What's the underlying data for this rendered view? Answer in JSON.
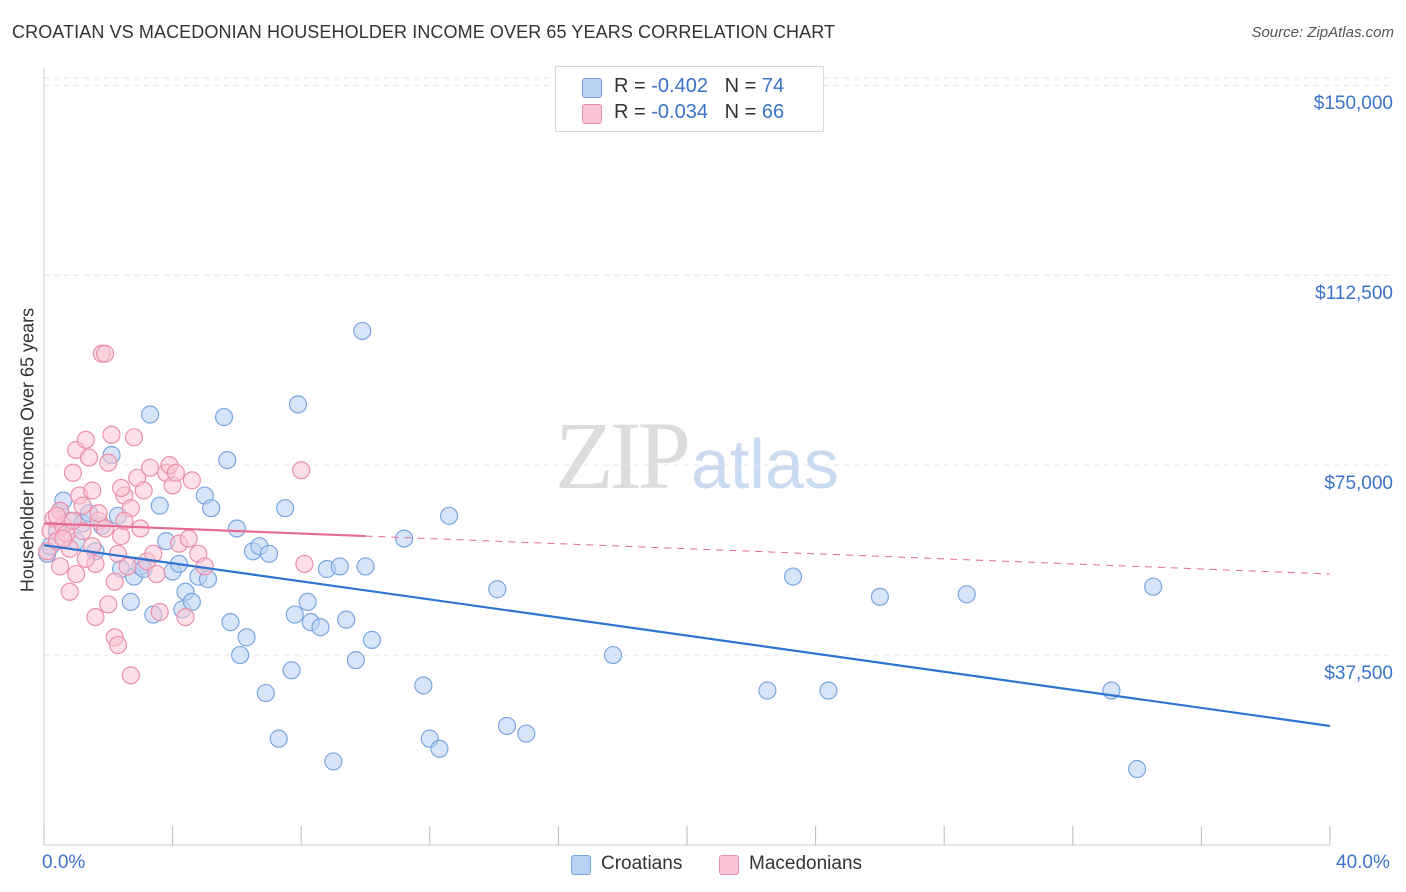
{
  "title": "CROATIAN VS MACEDONIAN HOUSEHOLDER INCOME OVER 65 YEARS CORRELATION CHART",
  "source": "Source: ZipAtlas.com",
  "watermark": {
    "zip": "ZIP",
    "atlas": "atlas"
  },
  "legend_top": [
    {
      "r_label": "R = ",
      "r_value": "-0.402",
      "n_label": "N = ",
      "n_value": "74"
    },
    {
      "r_label": "R = ",
      "r_value": "-0.034",
      "n_label": "N = ",
      "n_value": "66"
    }
  ],
  "colors": {
    "croatians_fill": "#b8d0f2",
    "croatians_stroke": "#7aa6e0",
    "croatians_line": "#2f74d0",
    "macedonians_fill": "#f9c4d4",
    "macedonians_stroke": "#ec8fad",
    "macedonians_line": "#e46a93",
    "axis_text": "#3a73c9",
    "grid": "#e6e6e6"
  },
  "chart_data": {
    "type": "scatter",
    "title": "CROATIAN VS MACEDONIAN HOUSEHOLDER INCOME OVER 65 YEARS CORRELATION CHART",
    "xlabel": "",
    "ylabel": "Householder Income Over 65 years",
    "xlim": [
      0,
      40
    ],
    "ylim": [
      0,
      155000
    ],
    "x_tick_labels": [
      "0.0%",
      "40.0%"
    ],
    "y_ticks": [
      37500,
      75000,
      112500,
      150000
    ],
    "y_tick_labels": [
      "$37,500",
      "$75,000",
      "$112,500",
      "$150,000"
    ],
    "grid": true,
    "legend_position": "bottom-center",
    "series": [
      {
        "name": "Croatians",
        "r": -0.402,
        "n": 74,
        "trend": {
          "x": [
            0,
            40
          ],
          "y": [
            59200,
            23500
          ],
          "dashed_from": null
        },
        "points": [
          [
            0.1,
            57500
          ],
          [
            0.2,
            59000
          ],
          [
            0.4,
            62000
          ],
          [
            0.5,
            66000
          ],
          [
            0.6,
            68000
          ],
          [
            0.8,
            64000
          ],
          [
            1.0,
            60000
          ],
          [
            1.2,
            63500
          ],
          [
            1.4,
            65500
          ],
          [
            1.6,
            58000
          ],
          [
            1.8,
            63000
          ],
          [
            2.1,
            77000
          ],
          [
            2.3,
            65000
          ],
          [
            2.4,
            54500
          ],
          [
            2.7,
            48000
          ],
          [
            2.8,
            53000
          ],
          [
            3.0,
            55000
          ],
          [
            3.1,
            54500
          ],
          [
            3.3,
            85000
          ],
          [
            3.4,
            45500
          ],
          [
            3.6,
            67000
          ],
          [
            3.8,
            60000
          ],
          [
            4.0,
            54000
          ],
          [
            4.2,
            55500
          ],
          [
            4.3,
            46500
          ],
          [
            4.4,
            50000
          ],
          [
            4.6,
            48000
          ],
          [
            4.8,
            53000
          ],
          [
            5.0,
            69000
          ],
          [
            5.1,
            52500
          ],
          [
            5.2,
            66500
          ],
          [
            5.6,
            84500
          ],
          [
            5.7,
            76000
          ],
          [
            5.8,
            44000
          ],
          [
            6.0,
            62500
          ],
          [
            6.1,
            37500
          ],
          [
            6.3,
            41000
          ],
          [
            6.5,
            58000
          ],
          [
            6.7,
            59000
          ],
          [
            6.9,
            30000
          ],
          [
            7.0,
            57500
          ],
          [
            7.3,
            21000
          ],
          [
            7.5,
            66500
          ],
          [
            7.7,
            34500
          ],
          [
            7.8,
            45500
          ],
          [
            7.9,
            87000
          ],
          [
            8.2,
            48000
          ],
          [
            8.3,
            44000
          ],
          [
            8.6,
            43000
          ],
          [
            8.8,
            54500
          ],
          [
            9.0,
            16500
          ],
          [
            9.2,
            55000
          ],
          [
            9.4,
            44500
          ],
          [
            9.7,
            36500
          ],
          [
            9.9,
            101500
          ],
          [
            10.0,
            55000
          ],
          [
            10.2,
            40500
          ],
          [
            11.2,
            60500
          ],
          [
            11.8,
            31500
          ],
          [
            12.0,
            21000
          ],
          [
            12.3,
            19000
          ],
          [
            12.6,
            65000
          ],
          [
            14.1,
            50500
          ],
          [
            14.4,
            23500
          ],
          [
            15.0,
            22000
          ],
          [
            17.7,
            37500
          ],
          [
            22.5,
            30500
          ],
          [
            23.3,
            53000
          ],
          [
            24.4,
            30500
          ],
          [
            26.0,
            49000
          ],
          [
            28.7,
            49500
          ],
          [
            33.2,
            30500
          ],
          [
            34.5,
            51000
          ],
          [
            34.0,
            15000
          ]
        ]
      },
      {
        "name": "Macedonians",
        "r": -0.034,
        "n": 66,
        "trend": {
          "x": [
            0,
            40
          ],
          "y": [
            63500,
            53500
          ],
          "solid_until_x": 10
        },
        "points": [
          [
            0.1,
            58000
          ],
          [
            0.2,
            62000
          ],
          [
            0.3,
            64500
          ],
          [
            0.4,
            60000
          ],
          [
            0.5,
            66000
          ],
          [
            0.6,
            63000
          ],
          [
            0.7,
            61500
          ],
          [
            0.8,
            58500
          ],
          [
            0.9,
            73500
          ],
          [
            1.0,
            78000
          ],
          [
            1.1,
            69000
          ],
          [
            1.2,
            62000
          ],
          [
            1.3,
            80000
          ],
          [
            1.4,
            76500
          ],
          [
            1.5,
            59000
          ],
          [
            1.6,
            55500
          ],
          [
            1.7,
            64000
          ],
          [
            1.8,
            97000
          ],
          [
            1.9,
            97000
          ],
          [
            2.0,
            75500
          ],
          [
            2.1,
            81000
          ],
          [
            2.2,
            52000
          ],
          [
            2.3,
            57500
          ],
          [
            2.4,
            61000
          ],
          [
            2.5,
            69000
          ],
          [
            2.6,
            55000
          ],
          [
            2.7,
            66500
          ],
          [
            2.8,
            80500
          ],
          [
            2.9,
            72500
          ],
          [
            3.0,
            62500
          ],
          [
            3.1,
            70000
          ],
          [
            3.2,
            56000
          ],
          [
            3.4,
            57500
          ],
          [
            3.6,
            46000
          ],
          [
            3.8,
            73500
          ],
          [
            3.9,
            75000
          ],
          [
            4.0,
            71000
          ],
          [
            4.1,
            73500
          ],
          [
            4.2,
            59500
          ],
          [
            4.4,
            45000
          ],
          [
            4.6,
            72000
          ],
          [
            4.8,
            57500
          ],
          [
            5.0,
            55000
          ],
          [
            0.4,
            65000
          ],
          [
            0.6,
            60500
          ],
          [
            0.9,
            64000
          ],
          [
            1.2,
            67000
          ],
          [
            1.5,
            70000
          ],
          [
            1.7,
            65500
          ],
          [
            2.0,
            47500
          ],
          [
            2.2,
            41000
          ],
          [
            2.3,
            39500
          ],
          [
            2.5,
            64000
          ],
          [
            2.7,
            33500
          ],
          [
            1.0,
            53500
          ],
          [
            1.6,
            45000
          ],
          [
            3.3,
            74500
          ],
          [
            8.0,
            74000
          ],
          [
            8.1,
            55500
          ],
          [
            0.8,
            50000
          ],
          [
            1.3,
            56500
          ],
          [
            1.9,
            62500
          ],
          [
            2.4,
            70500
          ],
          [
            3.5,
            53500
          ],
          [
            4.5,
            60500
          ],
          [
            0.5,
            55000
          ]
        ]
      }
    ]
  },
  "legend_bottom": {
    "croatians": "Croatians",
    "macedonians": "Macedonians"
  }
}
